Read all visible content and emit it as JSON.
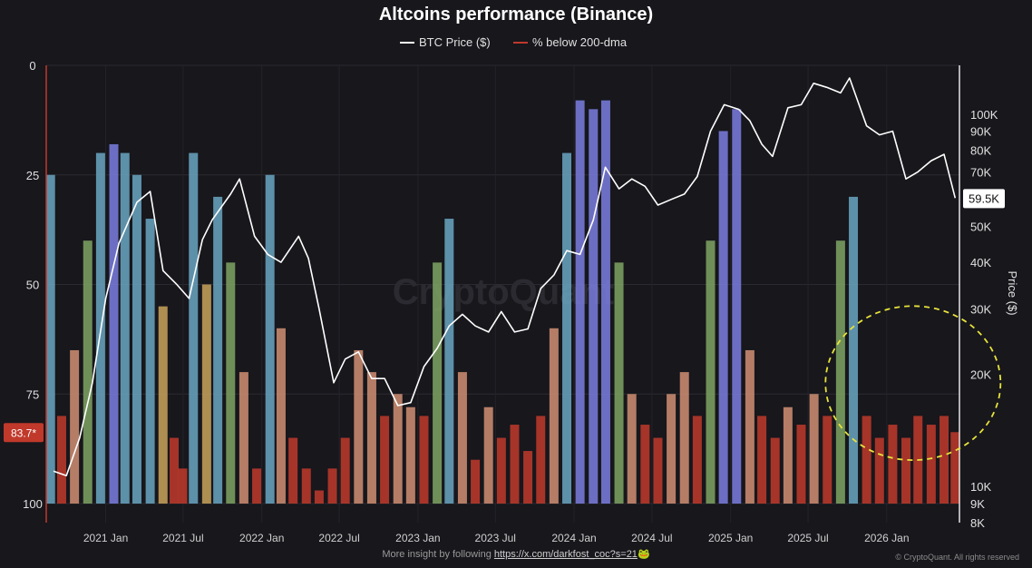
{
  "chart_data": {
    "type": "bar",
    "title": "Altcoins performance (Binance)",
    "legend": {
      "placement": "top-center",
      "entries": [
        {
          "name": "BTC Price ($)",
          "color": "#ffffff"
        },
        {
          "name": "% below 200-dma",
          "color": "#c0392b"
        }
      ]
    },
    "grid": true,
    "watermark": "CryptoQuant",
    "left_axis": {
      "ylim": [
        0,
        100
      ],
      "inverted": true,
      "ticks": [
        "0",
        "25",
        "50",
        "75",
        "100"
      ],
      "current_value_label": "83.7*",
      "current_value": 83.7
    },
    "right_axis": {
      "label": "Price ($)",
      "scale": "log",
      "ylim": [
        8000,
        160000
      ],
      "ticks": [
        {
          "label": "100K",
          "value": 100000
        },
        {
          "label": "90K",
          "value": 90000
        },
        {
          "label": "80K",
          "value": 80000
        },
        {
          "label": "70K",
          "value": 70000
        },
        {
          "label": "60K",
          "value": 60000
        },
        {
          "label": "50K",
          "value": 50000
        },
        {
          "label": "40K",
          "value": 40000
        },
        {
          "label": "30K",
          "value": 30000
        },
        {
          "label": "20K",
          "value": 20000
        },
        {
          "label": "10K",
          "value": 10000
        },
        {
          "label": "9K",
          "value": 9000
        },
        {
          "label": "8K",
          "value": 8000
        }
      ],
      "current_price_label": "59.5K",
      "current_price": 59500
    },
    "x_axis": {
      "xlim": [
        "2020-08-15",
        "2026-06-20"
      ],
      "ticks": [
        {
          "label": "2021 Jan",
          "date": "2021-01-01"
        },
        {
          "label": "2021 Jul",
          "date": "2021-07-01"
        },
        {
          "label": "2022 Jan",
          "date": "2022-01-01"
        },
        {
          "label": "2022 Jul",
          "date": "2022-07-01"
        },
        {
          "label": "2023 Jan",
          "date": "2023-01-01"
        },
        {
          "label": "2023 Jul",
          "date": "2023-07-01"
        },
        {
          "label": "2024 Jan",
          "date": "2024-01-01"
        },
        {
          "label": "2024 Jul",
          "date": "2024-07-01"
        },
        {
          "label": "2025 Jan",
          "date": "2025-01-01"
        },
        {
          "label": "2025 Jul",
          "date": "2025-07-01"
        },
        {
          "label": "2026 Jan",
          "date": "2026-01-01"
        }
      ]
    },
    "series": [
      {
        "name": "% below 200-dma",
        "type": "bar",
        "x": [
          "2020-08-25",
          "2020-09-20",
          "2020-10-20",
          "2020-11-20",
          "2020-12-20",
          "2021-01-20",
          "2021-02-15",
          "2021-03-15",
          "2021-04-15",
          "2021-05-15",
          "2021-06-10",
          "2021-06-30",
          "2021-07-25",
          "2021-08-25",
          "2021-09-20",
          "2021-10-20",
          "2021-11-20",
          "2021-12-20",
          "2022-01-20",
          "2022-02-15",
          "2022-03-15",
          "2022-04-15",
          "2022-05-15",
          "2022-06-15",
          "2022-07-15",
          "2022-08-15",
          "2022-09-15",
          "2022-10-15",
          "2022-11-15",
          "2022-12-15",
          "2023-01-15",
          "2023-02-15",
          "2023-03-15",
          "2023-04-15",
          "2023-05-15",
          "2023-06-15",
          "2023-07-15",
          "2023-08-15",
          "2023-09-15",
          "2023-10-15",
          "2023-11-15",
          "2023-12-15",
          "2024-01-15",
          "2024-02-15",
          "2024-03-15",
          "2024-04-15",
          "2024-05-15",
          "2024-06-15",
          "2024-07-15",
          "2024-08-15",
          "2024-09-15",
          "2024-10-15",
          "2024-11-15",
          "2024-12-15",
          "2025-01-15",
          "2025-02-15",
          "2025-03-15",
          "2025-04-15",
          "2025-05-15",
          "2025-06-15",
          "2025-07-15",
          "2025-08-15",
          "2025-09-15",
          "2025-10-15",
          "2025-11-15",
          "2025-12-15",
          "2026-01-15",
          "2026-02-15",
          "2026-03-15",
          "2026-04-15",
          "2026-05-15",
          "2026-06-10"
        ],
        "values": [
          25,
          80,
          65,
          40,
          20,
          18,
          20,
          25,
          35,
          55,
          85,
          92,
          20,
          50,
          30,
          45,
          70,
          92,
          25,
          60,
          85,
          92,
          97,
          92,
          85,
          65,
          70,
          80,
          75,
          78,
          80,
          45,
          35,
          70,
          90,
          78,
          85,
          82,
          88,
          80,
          60,
          20,
          8,
          10,
          8,
          45,
          75,
          82,
          85,
          75,
          70,
          80,
          40,
          15,
          10,
          65,
          80,
          85,
          78,
          82,
          75,
          80,
          40,
          30,
          80,
          85,
          82,
          85,
          80,
          82,
          80,
          83.7
        ]
      },
      {
        "name": "BTC Price ($)",
        "type": "line",
        "x": [
          "2020-09-01",
          "2020-10-01",
          "2020-11-01",
          "2020-12-01",
          "2021-01-01",
          "2021-02-01",
          "2021-03-15",
          "2021-04-15",
          "2021-05-15",
          "2021-06-15",
          "2021-07-15",
          "2021-08-15",
          "2021-09-07",
          "2021-10-20",
          "2021-11-10",
          "2021-12-15",
          "2022-01-15",
          "2022-02-15",
          "2022-03-28",
          "2022-04-20",
          "2022-05-15",
          "2022-06-18",
          "2022-07-15",
          "2022-08-15",
          "2022-09-15",
          "2022-10-15",
          "2022-11-15",
          "2022-12-15",
          "2023-01-15",
          "2023-02-15",
          "2023-03-15",
          "2023-04-15",
          "2023-05-15",
          "2023-06-15",
          "2023-07-15",
          "2023-08-15",
          "2023-09-15",
          "2023-10-15",
          "2023-11-15",
          "2023-12-15",
          "2024-01-15",
          "2024-02-15",
          "2024-03-14",
          "2024-04-15",
          "2024-05-15",
          "2024-06-15",
          "2024-07-15",
          "2024-08-15",
          "2024-09-15",
          "2024-10-15",
          "2024-11-15",
          "2024-12-17",
          "2025-01-20",
          "2025-02-15",
          "2025-03-15",
          "2025-04-09",
          "2025-05-15",
          "2025-06-15",
          "2025-07-14",
          "2025-08-14",
          "2025-09-15",
          "2025-10-06",
          "2025-11-15",
          "2025-12-15",
          "2026-01-15",
          "2026-02-15",
          "2026-03-15",
          "2026-04-15",
          "2026-05-15",
          "2026-06-10"
        ],
        "values": [
          11000,
          10700,
          13500,
          19000,
          32000,
          45000,
          58000,
          62000,
          38000,
          35000,
          32000,
          46000,
          52000,
          61000,
          67000,
          47000,
          42000,
          40000,
          47000,
          41000,
          30000,
          19000,
          22000,
          23000,
          19500,
          19500,
          16500,
          16800,
          21000,
          23500,
          27000,
          29000,
          27000,
          26000,
          29500,
          26000,
          26500,
          34000,
          37000,
          43000,
          42000,
          52000,
          72000,
          63000,
          67000,
          64000,
          57000,
          59000,
          61000,
          68000,
          90000,
          106000,
          103000,
          96000,
          83000,
          77000,
          104000,
          106000,
          121000,
          118000,
          114000,
          125000,
          93000,
          88000,
          90000,
          67000,
          70000,
          75000,
          78000,
          59500
        ]
      }
    ],
    "annotations": [
      {
        "type": "dashed-ellipse",
        "color": "#e8e33a",
        "x_range": [
          "2025-09-01",
          "2026-06-10"
        ],
        "y_range_left_axis": [
          57,
          88
        ]
      }
    ]
  },
  "footer": {
    "text": "More insight by following ",
    "link": "https://x.com/darkfost_coc?s=21",
    "emoji": "🐸"
  },
  "copyright": "© CryptoQuant. All rights reserved"
}
